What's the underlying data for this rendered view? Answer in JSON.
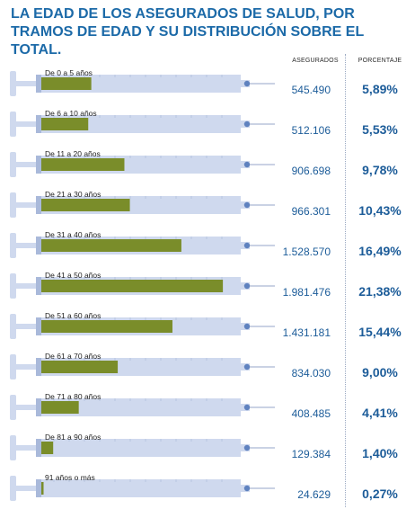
{
  "title": "LA EDAD DE LOS ASEGURADOS DE SALUD, POR TRAMOS DE EDAD Y SU DISTRIBUCIÓN SOBRE EL TOTAL.",
  "columns": {
    "insured": "ASEGURADOS",
    "percent": "PORCENTAJE"
  },
  "colors": {
    "title": "#1c6aa8",
    "fill": "#7a8d2a",
    "syringe": "#cfd9ee",
    "syringe_dark": "#a9b9da",
    "value": "#1c5c99"
  },
  "chart_data": {
    "type": "bar",
    "orientation": "horizontal",
    "title": "LA EDAD DE LOS ASEGURADOS DE SALUD, POR TRAMOS DE EDAD Y SU DISTRIBUCIÓN SOBRE EL TOTAL.",
    "categories": [
      "De 0 a 5 años",
      "De 6 a 10 años",
      "De 11 a 20 años",
      "De 21 a 30 años",
      "De 31 a 40 años",
      "De 41 a 50 años",
      "De 51 a 60 años",
      "De 61 a 70 años",
      "De 71 a 80 años",
      "De 81 a 90 años",
      "91 años o más"
    ],
    "values": [
      545490,
      512106,
      906698,
      966301,
      1528570,
      1981476,
      1431181,
      834030,
      408485,
      129384,
      24629
    ],
    "value_labels": [
      "545.490",
      "512.106",
      "906.698",
      "966.301",
      "1.528.570",
      "1.981.476",
      "1.431.181",
      "834.030",
      "408.485",
      "129.384",
      "24.629"
    ],
    "percent_labels": [
      "5,89%",
      "5,53%",
      "9,78%",
      "10,43%",
      "16,49%",
      "21,38%",
      "15,44%",
      "9,00%",
      "4,41%",
      "1,40%",
      "0,27%"
    ],
    "xlim": [
      0,
      2000000
    ]
  }
}
